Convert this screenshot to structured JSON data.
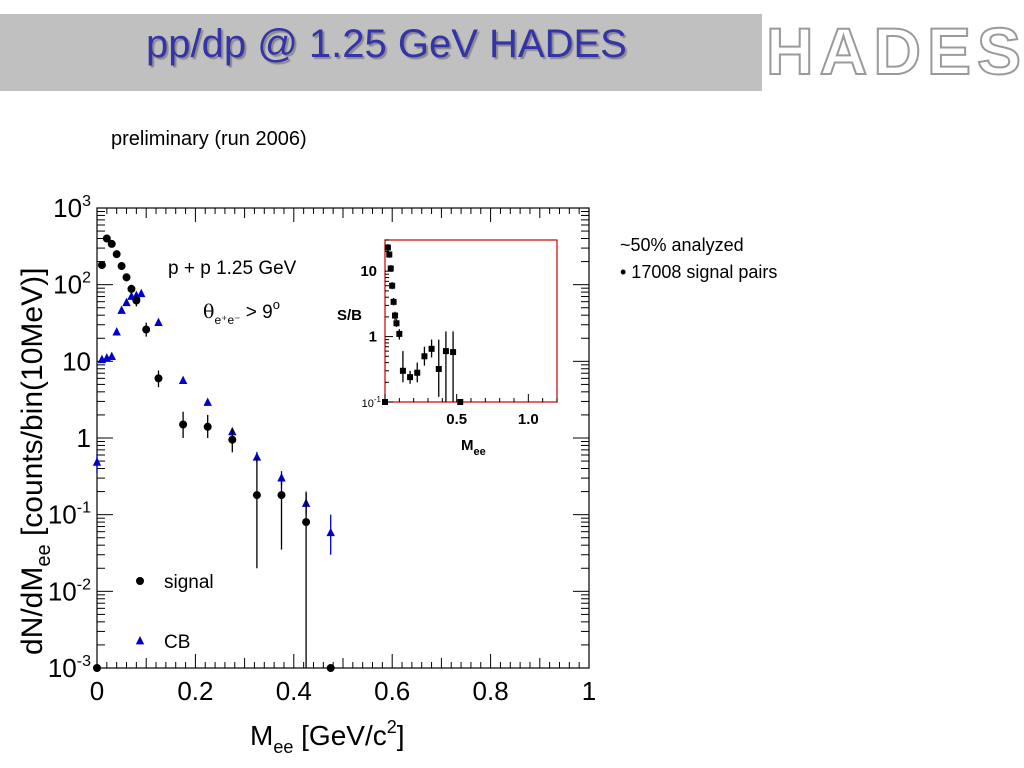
{
  "slide": {
    "title": "pp/dp  @ 1.25 GeV HADES",
    "logo_text": "HADES",
    "subtitle": "preliminary (run 2006)",
    "notes": [
      "~50% analyzed",
      "•  17008  signal pairs"
    ]
  },
  "colors": {
    "title": "#3333aa",
    "header_bg": "#c0c0c0",
    "signal": "#000000",
    "cb": "#0000cc",
    "inset_frame": "#cc0000"
  },
  "chart_data": [
    {
      "type": "scatter",
      "yscale": "log",
      "xlim": [
        0,
        1
      ],
      "ylim": [
        0.001,
        1000
      ],
      "xlabel": {
        "main": "M",
        "sub": "ee",
        "unit_a": " [GeV/c",
        "sup": "2",
        "unit_b": "]"
      },
      "ylabel": {
        "main": "dN/dM",
        "sub": "ee",
        "rest": " [counts/bin(10MeV)]"
      },
      "xticks": [
        {
          "v": 0,
          "label": "0"
        },
        {
          "v": 0.2,
          "label": "0.2"
        },
        {
          "v": 0.4,
          "label": "0.4"
        },
        {
          "v": 0.6,
          "label": "0.6"
        },
        {
          "v": 0.8,
          "label": "0.8"
        },
        {
          "v": 1,
          "label": "1"
        }
      ],
      "yticks": [
        {
          "v": 0.001,
          "base": "10",
          "exp": "-3"
        },
        {
          "v": 0.01,
          "base": "10",
          "exp": "-2"
        },
        {
          "v": 0.1,
          "base": "10",
          "exp": "-1"
        },
        {
          "v": 1,
          "base": "1",
          "exp": ""
        },
        {
          "v": 10,
          "base": "10",
          "exp": ""
        },
        {
          "v": 100,
          "base": "10",
          "exp": "2"
        },
        {
          "v": 1000,
          "base": "10",
          "exp": "3"
        }
      ],
      "annotations": {
        "reaction": "p + p  1.25 GeV",
        "cut_symbol": "θ",
        "cut_sub": "e⁺e⁻",
        "cut_rest": " > 9",
        "cut_sup": "o"
      },
      "series": [
        {
          "name": "signal",
          "marker": "circle",
          "color": "#000000",
          "points": [
            {
              "x": 0.0,
              "y": 0.001
            },
            {
              "x": 0.01,
              "y": 180,
              "lo": 160,
              "hi": 200
            },
            {
              "x": 0.02,
              "y": 400,
              "lo": 370,
              "hi": 430
            },
            {
              "x": 0.03,
              "y": 340,
              "lo": 310,
              "hi": 370
            },
            {
              "x": 0.04,
              "y": 250,
              "lo": 225,
              "hi": 275
            },
            {
              "x": 0.05,
              "y": 175,
              "lo": 155,
              "hi": 195
            },
            {
              "x": 0.06,
              "y": 125,
              "lo": 110,
              "hi": 140
            },
            {
              "x": 0.07,
              "y": 88,
              "lo": 76,
              "hi": 100
            },
            {
              "x": 0.08,
              "y": 62,
              "lo": 52,
              "hi": 72
            },
            {
              "x": 0.1,
              "y": 26,
              "lo": 21,
              "hi": 32
            },
            {
              "x": 0.125,
              "y": 6,
              "lo": 4.6,
              "hi": 7.6
            },
            {
              "x": 0.175,
              "y": 1.5,
              "lo": 1.0,
              "hi": 2.2
            },
            {
              "x": 0.225,
              "y": 1.4,
              "lo": 1.0,
              "hi": 2.0
            },
            {
              "x": 0.275,
              "y": 0.95,
              "lo": 0.65,
              "hi": 1.35
            },
            {
              "x": 0.325,
              "y": 0.18,
              "lo": 0.02,
              "hi": 0.55
            },
            {
              "x": 0.375,
              "y": 0.18,
              "lo": 0.035,
              "hi": 0.3
            },
            {
              "x": 0.425,
              "y": 0.08,
              "lo": 0.001,
              "hi": 0.2
            },
            {
              "x": 0.475,
              "y": 0.001,
              "lo": 0.001,
              "hi": 0.001
            }
          ]
        },
        {
          "name": "CB",
          "marker": "triangle",
          "color": "#0000cc",
          "points": [
            {
              "x": 0.0,
              "y": 0.48,
              "lo": 0.35,
              "hi": 0.62
            },
            {
              "x": 0.01,
              "y": 10.5
            },
            {
              "x": 0.02,
              "y": 11
            },
            {
              "x": 0.03,
              "y": 11.5
            },
            {
              "x": 0.04,
              "y": 24
            },
            {
              "x": 0.05,
              "y": 46
            },
            {
              "x": 0.06,
              "y": 58
            },
            {
              "x": 0.07,
              "y": 70
            },
            {
              "x": 0.08,
              "y": 72
            },
            {
              "x": 0.09,
              "y": 76
            },
            {
              "x": 0.125,
              "y": 32
            },
            {
              "x": 0.175,
              "y": 5.6
            },
            {
              "x": 0.225,
              "y": 2.9
            },
            {
              "x": 0.275,
              "y": 1.2,
              "lo": 1.1,
              "hi": 1.32
            },
            {
              "x": 0.325,
              "y": 0.56,
              "lo": 0.48,
              "hi": 0.66
            },
            {
              "x": 0.375,
              "y": 0.3,
              "lo": 0.24,
              "hi": 0.37
            },
            {
              "x": 0.425,
              "y": 0.14,
              "lo": 0.1,
              "hi": 0.19
            },
            {
              "x": 0.475,
              "y": 0.058,
              "lo": 0.03,
              "hi": 0.1
            }
          ]
        }
      ],
      "legend": {
        "placement": "bottom-left",
        "entries": [
          "signal",
          "CB"
        ]
      }
    },
    {
      "type": "scatter",
      "role": "inset",
      "yscale": "log",
      "xlim": [
        0,
        1.2
      ],
      "ylim": [
        0.1,
        30
      ],
      "ylabel": "S/B",
      "xlabel": {
        "main": "M",
        "sub": "ee"
      },
      "xticks": [
        {
          "v": 0.5,
          "label": "0.5"
        },
        {
          "v": 1.0,
          "label": "1.0"
        }
      ],
      "yticks": [
        {
          "v": 0.1,
          "label": "10",
          "exp": "-1",
          "bold": false
        },
        {
          "v": 1,
          "label": "1",
          "exp": "",
          "bold": true
        },
        {
          "v": 10,
          "label": "10",
          "exp": "",
          "bold": true
        }
      ],
      "series": [
        {
          "name": "S/B",
          "marker": "square",
          "color": "#000000",
          "points": [
            {
              "x": 0.0,
              "y": 0.1
            },
            {
              "x": 0.02,
              "y": 23,
              "lo": 20,
              "hi": 26
            },
            {
              "x": 0.03,
              "y": 18,
              "lo": 16,
              "hi": 20
            },
            {
              "x": 0.04,
              "y": 11,
              "lo": 9.8,
              "hi": 12.4
            },
            {
              "x": 0.05,
              "y": 6,
              "lo": 5.3,
              "hi": 6.8
            },
            {
              "x": 0.06,
              "y": 3.4,
              "lo": 3.0,
              "hi": 3.9
            },
            {
              "x": 0.07,
              "y": 2.1,
              "lo": 1.8,
              "hi": 2.4
            },
            {
              "x": 0.08,
              "y": 1.6,
              "lo": 1.4,
              "hi": 1.85
            },
            {
              "x": 0.1,
              "y": 1.1,
              "lo": 0.9,
              "hi": 1.3
            },
            {
              "x": 0.125,
              "y": 0.3,
              "lo": 0.2,
              "hi": 0.6
            },
            {
              "x": 0.175,
              "y": 0.24,
              "lo": 0.19,
              "hi": 0.3
            },
            {
              "x": 0.225,
              "y": 0.28,
              "lo": 0.2,
              "hi": 0.4
            },
            {
              "x": 0.275,
              "y": 0.5,
              "lo": 0.36,
              "hi": 0.7
            },
            {
              "x": 0.325,
              "y": 0.65,
              "lo": 0.48,
              "hi": 0.9
            },
            {
              "x": 0.375,
              "y": 0.32,
              "lo": 0.12,
              "hi": 0.9
            },
            {
              "x": 0.425,
              "y": 0.6,
              "lo": 0.1,
              "hi": 1.2
            },
            {
              "x": 0.475,
              "y": 0.58,
              "lo": 0.1,
              "hi": 1.2
            },
            {
              "x": 0.525,
              "y": 0.1,
              "lo": 0.1,
              "hi": 0.1
            }
          ]
        }
      ]
    }
  ]
}
